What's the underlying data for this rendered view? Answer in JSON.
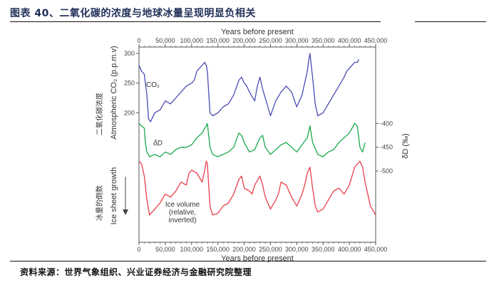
{
  "header": {
    "title": "图表 40、二氧化碳的浓度与地球冰量呈现明显负相关"
  },
  "footer": {
    "source": "资料来源：世界气象组织、兴业证券经济与金融研究院整理"
  },
  "chart_data": {
    "type": "line",
    "xlabel_top": "Years before present",
    "xlabel_bottom": "Years before present",
    "x_ticks": [
      0,
      50000,
      100000,
      150000,
      200000,
      250000,
      300000,
      350000,
      400000,
      450000
    ],
    "x_tick_labels": [
      "0",
      "50,000",
      "100,000",
      "150,000",
      "200,000",
      "250,000",
      "300,000",
      "350,000",
      "400,000",
      "450,000"
    ],
    "xlim": [
      0,
      450000
    ],
    "panels": [
      {
        "name": "CO₂",
        "ylabel": "Atmospheric CO₂ (p.p.m.v)",
        "ylabel_cn": "二氧化碳浓度",
        "y_ticks": [
          200,
          250,
          300
        ],
        "ylim": [
          180,
          300
        ],
        "color": "#4a4cb6",
        "x": [
          0,
          5000,
          10000,
          15000,
          18000,
          22000,
          30000,
          40000,
          50000,
          60000,
          70000,
          80000,
          90000,
          100000,
          105000,
          110000,
          115000,
          120000,
          125000,
          128000,
          130000,
          135000,
          140000,
          150000,
          160000,
          170000,
          180000,
          190000,
          195000,
          200000,
          205000,
          210000,
          220000,
          225000,
          230000,
          235000,
          240000,
          245000,
          250000,
          260000,
          270000,
          280000,
          285000,
          290000,
          300000,
          310000,
          315000,
          320000,
          323000,
          325000,
          330000,
          335000,
          340000,
          350000,
          360000,
          370000,
          380000,
          390000,
          395000,
          400000,
          405000,
          410000,
          415000,
          418000
        ],
        "values": [
          280,
          270,
          265,
          230,
          190,
          185,
          200,
          205,
          220,
          215,
          225,
          235,
          245,
          250,
          255,
          270,
          275,
          280,
          285,
          280,
          270,
          200,
          195,
          200,
          210,
          215,
          230,
          255,
          260,
          250,
          245,
          235,
          220,
          245,
          260,
          240,
          225,
          210,
          195,
          220,
          235,
          245,
          240,
          235,
          210,
          230,
          250,
          270,
          290,
          300,
          260,
          215,
          195,
          200,
          215,
          230,
          245,
          260,
          270,
          275,
          280,
          285,
          285,
          290
        ]
      },
      {
        "name": "δD",
        "ylabel": "δD (‰)",
        "y_ticks": [
          -400,
          -450,
          -500
        ],
        "ylim": [
          -500,
          -380
        ],
        "color": "#18a84b",
        "x": [
          0,
          10000,
          12000,
          15000,
          20000,
          30000,
          40000,
          50000,
          60000,
          70000,
          80000,
          90000,
          100000,
          110000,
          115000,
          120000,
          125000,
          128000,
          130000,
          135000,
          140000,
          150000,
          160000,
          170000,
          180000,
          190000,
          195000,
          200000,
          210000,
          220000,
          230000,
          235000,
          240000,
          250000,
          260000,
          270000,
          280000,
          290000,
          300000,
          310000,
          320000,
          325000,
          330000,
          340000,
          350000,
          360000,
          370000,
          380000,
          390000,
          400000,
          405000,
          410000,
          415000,
          420000,
          425000,
          430000
        ],
        "values": [
          -400,
          -410,
          -440,
          -460,
          -470,
          -465,
          -470,
          -460,
          -465,
          -455,
          -450,
          -450,
          -445,
          -430,
          -425,
          -420,
          -410,
          -405,
          -400,
          -450,
          -465,
          -470,
          -465,
          -460,
          -450,
          -420,
          -425,
          -440,
          -460,
          -455,
          -430,
          -425,
          -450,
          -465,
          -455,
          -445,
          -440,
          -450,
          -460,
          -445,
          -430,
          -405,
          -440,
          -465,
          -470,
          -460,
          -455,
          -440,
          -430,
          -420,
          -410,
          -400,
          -405,
          -450,
          -460,
          -440
        ]
      },
      {
        "name": "Ice volume",
        "label_lines": [
          "Ice volume",
          "(relative,",
          "inverted)"
        ],
        "ylabel": "Ice sheet growth",
        "ylabel_cn": "冰量的倒数",
        "color": "#ea3f4b",
        "x": [
          0,
          5000,
          10000,
          15000,
          20000,
          30000,
          40000,
          50000,
          60000,
          70000,
          80000,
          90000,
          95000,
          100000,
          110000,
          120000,
          125000,
          128000,
          130000,
          135000,
          140000,
          150000,
          160000,
          170000,
          180000,
          190000,
          195000,
          200000,
          210000,
          215000,
          220000,
          230000,
          235000,
          240000,
          250000,
          260000,
          265000,
          270000,
          280000,
          285000,
          290000,
          300000,
          310000,
          315000,
          320000,
          325000,
          330000,
          335000,
          340000,
          350000,
          360000,
          370000,
          380000,
          390000,
          400000,
          405000,
          410000,
          420000,
          425000,
          430000,
          440000,
          450000
        ],
        "values": [
          0.95,
          0.9,
          0.7,
          0.3,
          0.05,
          0.15,
          0.25,
          0.4,
          0.35,
          0.45,
          0.6,
          0.55,
          0.75,
          0.8,
          0.75,
          0.6,
          0.8,
          0.95,
          0.9,
          0.2,
          0.05,
          0.08,
          0.2,
          0.25,
          0.4,
          0.65,
          0.7,
          0.5,
          0.45,
          0.4,
          0.55,
          0.7,
          0.55,
          0.35,
          0.15,
          0.3,
          0.4,
          0.6,
          0.55,
          0.45,
          0.35,
          0.2,
          0.4,
          0.55,
          0.75,
          0.85,
          0.5,
          0.2,
          0.1,
          0.15,
          0.3,
          0.45,
          0.5,
          0.4,
          0.55,
          0.7,
          0.85,
          0.95,
          0.85,
          0.6,
          0.2,
          0.05
        ]
      }
    ]
  }
}
